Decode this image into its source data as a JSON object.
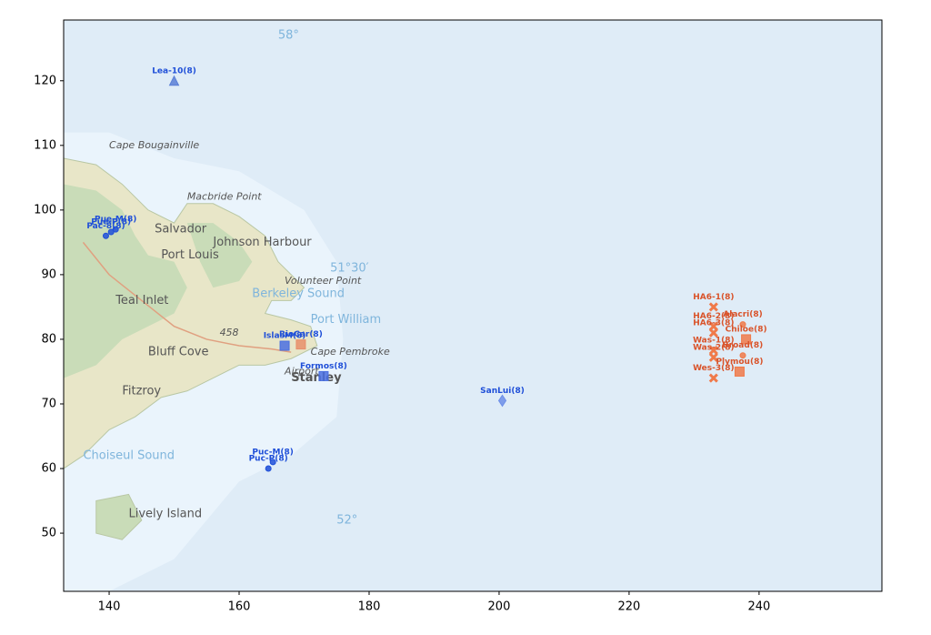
{
  "chart_data": {
    "type": "scatter",
    "xlim": [
      133.0,
      258.9
    ],
    "ylim": [
      41.0,
      129.4
    ],
    "xticks": [
      140,
      160,
      180,
      200,
      220,
      240
    ],
    "yticks": [
      50,
      60,
      70,
      80,
      90,
      100,
      110,
      120
    ],
    "map_labels": [
      "Cape Bougainville",
      "Macbride Point",
      "Salvador",
      "Port Louis",
      "Johnson Harbour",
      "Teal Inlet",
      "Volunteer Point",
      "Berkeley Sound",
      "Port William",
      "Bluff Cove",
      "Cape Pembroke",
      "Airport",
      "Stanley",
      "Fitzroy",
      "Lively Island",
      "Choiseul Sound",
      "58°",
      "51°30′",
      "52°",
      "458"
    ],
    "points": [
      {
        "label": "Lea-10(8)",
        "x": 150,
        "y": 120,
        "marker": "triangle",
        "color": "#5b7fd6"
      },
      {
        "label": "Pue-M(8)",
        "x": 141,
        "y": 97,
        "marker": "circle",
        "color": "#1f4fd8"
      },
      {
        "label": "Pue-P(8)",
        "x": 140.3,
        "y": 96.6,
        "marker": "circle",
        "color": "#1f4fd8"
      },
      {
        "label": "Pac-8(8)",
        "x": 139.5,
        "y": 96,
        "marker": "circle",
        "color": "#1f4fd8"
      },
      {
        "label": "RioCar(8)",
        "x": 169.5,
        "y": 79.2,
        "marker": "square",
        "color": "#e88f6a"
      },
      {
        "label": "IslasM(8)",
        "x": 167,
        "y": 79,
        "marker": "square",
        "color": "#4a6fe0"
      },
      {
        "label": "Formos(8)",
        "x": 173,
        "y": 74.3,
        "marker": "square",
        "color": "#4a6fe0"
      },
      {
        "label": "SanLui(8)",
        "x": 200.5,
        "y": 70.5,
        "marker": "diamond",
        "color": "#6d8fe8"
      },
      {
        "label": "Puc-M(8)",
        "x": 165.2,
        "y": 61,
        "marker": "circle",
        "color": "#1f4fd8"
      },
      {
        "label": "Puc-P(8)",
        "x": 164.5,
        "y": 60,
        "marker": "circle",
        "color": "#1f4fd8"
      },
      {
        "label": "HA6-1(8)",
        "x": 233,
        "y": 85,
        "marker": "x",
        "color": "#f07a4a"
      },
      {
        "label": "Alacri(8)",
        "x": 237.5,
        "y": 82.3,
        "marker": "circle",
        "color": "#f07a4a"
      },
      {
        "label": "HA6-2(8)",
        "x": 233,
        "y": 82,
        "marker": "x",
        "color": "#f07a4a"
      },
      {
        "label": "HA6-3(8)",
        "x": 233,
        "y": 81,
        "marker": "x",
        "color": "#f07a4a"
      },
      {
        "label": "Chiloe(8)",
        "x": 238,
        "y": 80,
        "marker": "square",
        "color": "#f07a4a"
      },
      {
        "label": "Was-1(8)",
        "x": 233,
        "y": 78.3,
        "marker": "x",
        "color": "#f07a4a"
      },
      {
        "label": "Was-2(8)",
        "x": 233,
        "y": 77.2,
        "marker": "x",
        "color": "#f07a4a"
      },
      {
        "label": "Broad(8)",
        "x": 237.5,
        "y": 77.5,
        "marker": "circle",
        "color": "#f07a4a"
      },
      {
        "label": "Plymou(8)",
        "x": 237,
        "y": 75,
        "marker": "square",
        "color": "#f07a4a"
      },
      {
        "label": "Wes-3(8)",
        "x": 233,
        "y": 74,
        "marker": "x",
        "color": "#f07a4a"
      }
    ]
  }
}
